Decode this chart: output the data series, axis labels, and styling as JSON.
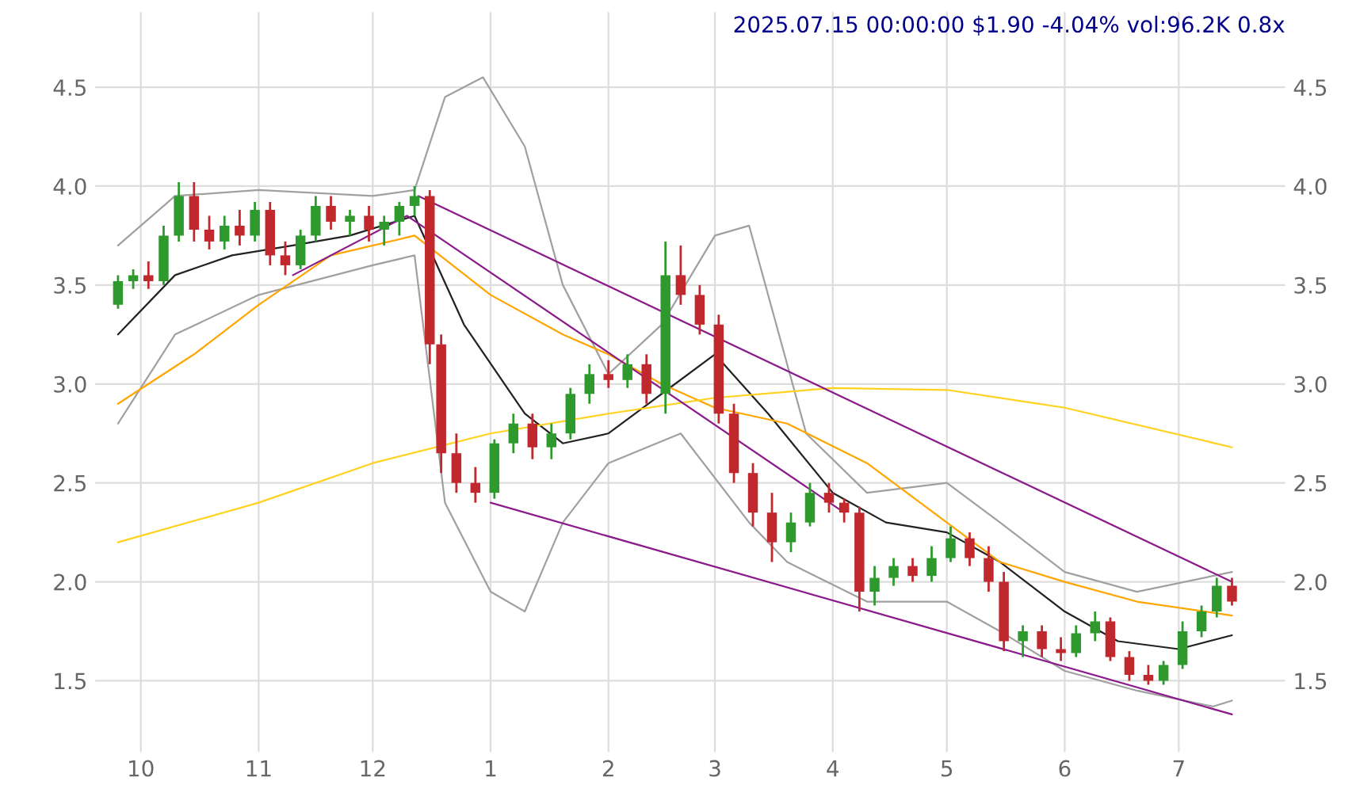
{
  "chart_data": {
    "type": "candlestick",
    "title": "2025.07.15 00:00:00 $1.90 -4.04% vol:96.2K 0.8x",
    "x": [
      "2024-09-25",
      "2024-09-29",
      "2024-10-03",
      "2024-10-07",
      "2024-10-11",
      "2024-10-15",
      "2024-10-19",
      "2024-10-23",
      "2024-10-27",
      "2024-10-31",
      "2024-11-04",
      "2024-11-08",
      "2024-11-12",
      "2024-11-16",
      "2024-11-20",
      "2024-11-25",
      "2024-11-30",
      "2024-12-04",
      "2024-12-08",
      "2024-12-12",
      "2024-12-16",
      "2024-12-19",
      "2024-12-23",
      "2024-12-28",
      "2025-01-02",
      "2025-01-07",
      "2025-01-12",
      "2025-01-17",
      "2025-01-22",
      "2025-01-27",
      "2025-02-01",
      "2025-02-06",
      "2025-02-11",
      "2025-02-16",
      "2025-02-20",
      "2025-02-25",
      "2025-03-02",
      "2025-03-06",
      "2025-03-11",
      "2025-03-16",
      "2025-03-21",
      "2025-03-26",
      "2025-03-31",
      "2025-04-04",
      "2025-04-08",
      "2025-04-12",
      "2025-04-17",
      "2025-04-22",
      "2025-04-27",
      "2025-05-02",
      "2025-05-07",
      "2025-05-12",
      "2025-05-16",
      "2025-05-21",
      "2025-05-26",
      "2025-05-31",
      "2025-06-04",
      "2025-06-09",
      "2025-06-13",
      "2025-06-18",
      "2025-06-23",
      "2025-06-27",
      "2025-07-02",
      "2025-07-07",
      "2025-07-11",
      "2025-07-15"
    ],
    "ohlc": [
      [
        3.4,
        3.55,
        3.38,
        3.52
      ],
      [
        3.52,
        3.58,
        3.48,
        3.55
      ],
      [
        3.55,
        3.62,
        3.48,
        3.52
      ],
      [
        3.52,
        3.8,
        3.5,
        3.75
      ],
      [
        3.75,
        4.02,
        3.72,
        3.95
      ],
      [
        3.95,
        4.02,
        3.72,
        3.78
      ],
      [
        3.78,
        3.85,
        3.68,
        3.72
      ],
      [
        3.72,
        3.85,
        3.68,
        3.8
      ],
      [
        3.8,
        3.88,
        3.7,
        3.75
      ],
      [
        3.75,
        3.92,
        3.72,
        3.88
      ],
      [
        3.88,
        3.92,
        3.6,
        3.65
      ],
      [
        3.65,
        3.72,
        3.55,
        3.6
      ],
      [
        3.6,
        3.78,
        3.58,
        3.75
      ],
      [
        3.75,
        3.95,
        3.72,
        3.9
      ],
      [
        3.9,
        3.95,
        3.78,
        3.82
      ],
      [
        3.82,
        3.88,
        3.75,
        3.85
      ],
      [
        3.85,
        3.9,
        3.72,
        3.78
      ],
      [
        3.78,
        3.85,
        3.7,
        3.82
      ],
      [
        3.82,
        3.92,
        3.75,
        3.9
      ],
      [
        3.9,
        4.0,
        3.85,
        3.95
      ],
      [
        3.95,
        3.98,
        3.1,
        3.2
      ],
      [
        3.2,
        3.25,
        2.55,
        2.65
      ],
      [
        2.65,
        2.75,
        2.45,
        2.5
      ],
      [
        2.5,
        2.58,
        2.4,
        2.45
      ],
      [
        2.45,
        2.72,
        2.42,
        2.7
      ],
      [
        2.7,
        2.85,
        2.65,
        2.8
      ],
      [
        2.8,
        2.85,
        2.62,
        2.68
      ],
      [
        2.68,
        2.8,
        2.62,
        2.75
      ],
      [
        2.75,
        2.98,
        2.72,
        2.95
      ],
      [
        2.95,
        3.1,
        2.9,
        3.05
      ],
      [
        3.05,
        3.12,
        2.98,
        3.02
      ],
      [
        3.02,
        3.15,
        2.98,
        3.1
      ],
      [
        3.1,
        3.15,
        2.9,
        2.95
      ],
      [
        2.95,
        3.72,
        2.85,
        3.55
      ],
      [
        3.55,
        3.7,
        3.4,
        3.45
      ],
      [
        3.45,
        3.5,
        3.25,
        3.3
      ],
      [
        3.3,
        3.35,
        2.8,
        2.85
      ],
      [
        2.85,
        2.9,
        2.5,
        2.55
      ],
      [
        2.55,
        2.6,
        2.28,
        2.35
      ],
      [
        2.35,
        2.45,
        2.1,
        2.2
      ],
      [
        2.2,
        2.35,
        2.15,
        2.3
      ],
      [
        2.3,
        2.5,
        2.28,
        2.45
      ],
      [
        2.45,
        2.5,
        2.35,
        2.4
      ],
      [
        2.4,
        2.42,
        2.3,
        2.35
      ],
      [
        2.35,
        2.38,
        1.85,
        1.95
      ],
      [
        1.95,
        2.08,
        1.88,
        2.02
      ],
      [
        2.02,
        2.12,
        1.98,
        2.08
      ],
      [
        2.08,
        2.12,
        2.0,
        2.03
      ],
      [
        2.03,
        2.18,
        2.0,
        2.12
      ],
      [
        2.12,
        2.28,
        2.1,
        2.22
      ],
      [
        2.22,
        2.25,
        2.08,
        2.12
      ],
      [
        2.12,
        2.18,
        1.95,
        2.0
      ],
      [
        2.0,
        2.05,
        1.65,
        1.7
      ],
      [
        1.7,
        1.78,
        1.62,
        1.75
      ],
      [
        1.75,
        1.78,
        1.62,
        1.66
      ],
      [
        1.66,
        1.72,
        1.6,
        1.64
      ],
      [
        1.64,
        1.78,
        1.62,
        1.74
      ],
      [
        1.74,
        1.85,
        1.7,
        1.8
      ],
      [
        1.8,
        1.82,
        1.6,
        1.62
      ],
      [
        1.62,
        1.65,
        1.5,
        1.53
      ],
      [
        1.53,
        1.58,
        1.48,
        1.5
      ],
      [
        1.5,
        1.6,
        1.48,
        1.58
      ],
      [
        1.58,
        1.8,
        1.56,
        1.75
      ],
      [
        1.75,
        1.88,
        1.72,
        1.85
      ],
      [
        1.85,
        2.02,
        1.82,
        1.98
      ],
      [
        1.98,
        2.02,
        1.88,
        1.9
      ]
    ],
    "colors": [
      "#2e9a2e",
      "#2e9a2e",
      "#c0282d",
      "#2e9a2e",
      "#2e9a2e",
      "#c0282d",
      "#c0282d",
      "#2e9a2e",
      "#c0282d",
      "#2e9a2e",
      "#c0282d",
      "#c0282d",
      "#2e9a2e",
      "#2e9a2e",
      "#c0282d",
      "#2e9a2e",
      "#c0282d",
      "#2e9a2e",
      "#2e9a2e",
      "#2e9a2e",
      "#c0282d",
      "#c0282d",
      "#c0282d",
      "#c0282d",
      "#2e9a2e",
      "#2e9a2e",
      "#c0282d",
      "#2e9a2e",
      "#2e9a2e",
      "#2e9a2e",
      "#c0282d",
      "#2e9a2e",
      "#c0282d",
      "#2e9a2e",
      "#c0282d",
      "#c0282d",
      "#c0282d",
      "#c0282d",
      "#c0282d",
      "#c0282d",
      "#2e9a2e",
      "#2e9a2e",
      "#c0282d",
      "#c0282d",
      "#c0282d",
      "#2e9a2e",
      "#2e9a2e",
      "#c0282d",
      "#2e9a2e",
      "#2e9a2e",
      "#c0282d",
      "#c0282d",
      "#c0282d",
      "#2e9a2e",
      "#c0282d",
      "#c0282d",
      "#2e9a2e",
      "#2e9a2e",
      "#c0282d",
      "#c0282d",
      "#c0282d",
      "#2e9a2e",
      "#2e9a2e",
      "#2e9a2e",
      "#2e9a2e",
      "#c0282d"
    ],
    "series": [
      {
        "type": "line",
        "color": "#a0a0a0",
        "x": [
          "2024-09-25",
          "2024-10-10",
          "2024-11-01",
          "2024-12-01",
          "2024-12-12",
          "2024-12-20",
          "2024-12-30",
          "2025-01-10",
          "2025-01-20",
          "2025-02-01",
          "2025-02-15",
          "2025-03-01",
          "2025-03-10",
          "2025-03-25",
          "2025-04-10",
          "2025-05-01",
          "2025-05-15",
          "2025-06-01",
          "2025-06-20",
          "2025-07-15"
        ],
        "values": [
          3.7,
          3.95,
          3.98,
          3.95,
          3.98,
          4.45,
          4.55,
          4.2,
          3.5,
          3.05,
          3.3,
          3.75,
          3.8,
          2.75,
          2.45,
          2.5,
          2.3,
          2.05,
          1.95,
          2.05
        ]
      },
      {
        "type": "line",
        "color": "#a0a0a0",
        "x": [
          "2024-09-25",
          "2024-10-10",
          "2024-11-01",
          "2024-12-01",
          "2024-12-12",
          "2024-12-20",
          "2025-01-01",
          "2025-01-10",
          "2025-01-20",
          "2025-02-01",
          "2025-02-20",
          "2025-03-10",
          "2025-03-20",
          "2025-04-10",
          "2025-05-01",
          "2025-05-15",
          "2025-06-01",
          "2025-06-20",
          "2025-07-10",
          "2025-07-15"
        ],
        "values": [
          2.8,
          3.25,
          3.45,
          3.6,
          3.65,
          2.4,
          1.95,
          1.85,
          2.3,
          2.6,
          2.75,
          2.3,
          2.1,
          1.9,
          1.9,
          1.75,
          1.55,
          1.45,
          1.37,
          1.4
        ]
      },
      {
        "type": "line",
        "color": "#222222",
        "x": [
          "2024-09-25",
          "2024-10-10",
          "2024-10-25",
          "2024-11-10",
          "2024-11-25",
          "2024-12-12",
          "2024-12-25",
          "2025-01-10",
          "2025-01-20",
          "2025-02-01",
          "2025-02-15",
          "2025-03-01",
          "2025-03-15",
          "2025-04-01",
          "2025-04-15",
          "2025-05-01",
          "2025-05-15",
          "2025-06-01",
          "2025-06-15",
          "2025-07-01",
          "2025-07-15"
        ],
        "values": [
          3.25,
          3.55,
          3.65,
          3.7,
          3.75,
          3.85,
          3.3,
          2.85,
          2.7,
          2.75,
          2.95,
          3.15,
          2.85,
          2.45,
          2.3,
          2.25,
          2.1,
          1.85,
          1.7,
          1.66,
          1.73
        ]
      },
      {
        "type": "line",
        "color": "#ffa500",
        "x": [
          "2024-09-25",
          "2024-10-15",
          "2024-11-01",
          "2024-11-20",
          "2024-12-12",
          "2025-01-01",
          "2025-01-20",
          "2025-02-01",
          "2025-02-15",
          "2025-03-01",
          "2025-03-20",
          "2025-04-10",
          "2025-05-01",
          "2025-05-15",
          "2025-06-01",
          "2025-06-20",
          "2025-07-15"
        ],
        "values": [
          2.9,
          3.15,
          3.4,
          3.65,
          3.75,
          3.45,
          3.25,
          3.15,
          3.0,
          2.88,
          2.8,
          2.6,
          2.3,
          2.1,
          2.0,
          1.9,
          1.83
        ]
      },
      {
        "type": "line",
        "color": "#ffd21f",
        "x": [
          "2024-09-25",
          "2024-11-01",
          "2024-12-01",
          "2025-01-01",
          "2025-02-01",
          "2025-03-01",
          "2025-04-01",
          "2025-05-01",
          "2025-06-01",
          "2025-07-15"
        ],
        "values": [
          2.2,
          2.4,
          2.6,
          2.75,
          2.85,
          2.93,
          2.98,
          2.97,
          2.88,
          2.68
        ]
      },
      {
        "type": "line",
        "color": "#8b1a8b",
        "x": [
          "2024-12-13",
          "2025-07-15"
        ],
        "values": [
          3.95,
          2.0
        ]
      },
      {
        "type": "line",
        "color": "#8b1a8b",
        "x": [
          "2025-01-01",
          "2025-07-15"
        ],
        "values": [
          2.4,
          1.33
        ]
      },
      {
        "type": "line",
        "color": "#8b1a8b",
        "x": [
          "2024-11-10",
          "2024-12-10",
          "2025-04-04"
        ],
        "values": [
          3.55,
          3.85,
          2.35
        ]
      }
    ],
    "xlim": [
      "2024-09-19",
      "2025-07-29"
    ],
    "xticks": [
      {
        "value": "2024-10-01",
        "label": "10"
      },
      {
        "value": "2024-11-01",
        "label": "11"
      },
      {
        "value": "2024-12-01",
        "label": "12"
      },
      {
        "value": "2025-01-01",
        "label": "1"
      },
      {
        "value": "2025-02-01",
        "label": "2"
      },
      {
        "value": "2025-03-01",
        "label": "3"
      },
      {
        "value": "2025-04-01",
        "label": "4"
      },
      {
        "value": "2025-05-01",
        "label": "5"
      },
      {
        "value": "2025-06-01",
        "label": "6"
      },
      {
        "value": "2025-07-01",
        "label": "7"
      }
    ],
    "ylim": [
      1.14,
      4.88
    ],
    "yticks": [
      1.5,
      {
        "value": 2,
        "label": "2.0"
      },
      2.5,
      {
        "value": 3,
        "label": "3.0"
      },
      3.5,
      {
        "value": 4,
        "label": "4.0"
      },
      4.5
    ],
    "y2lim": [
      1.14,
      4.88
    ],
    "y2ticks": [
      1.5,
      {
        "value": 2,
        "label": "2.0"
      },
      2.5,
      {
        "value": 3,
        "label": "3.0"
      },
      3.5,
      {
        "value": 4,
        "label": "4.0"
      },
      4.5
    ],
    "grid": true
  }
}
